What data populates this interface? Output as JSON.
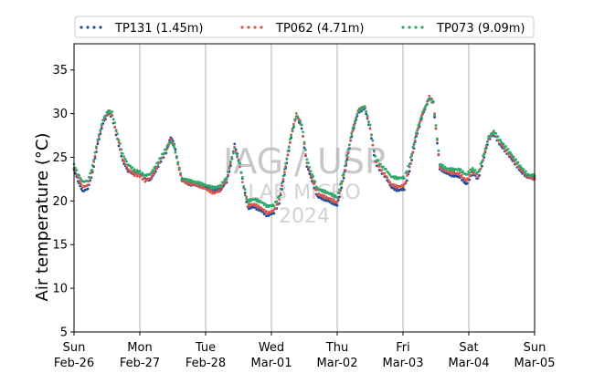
{
  "chart_data": {
    "type": "scatter",
    "ylabel": "Air temperature (°C)",
    "ylim": [
      5,
      38
    ],
    "yticks": [
      5,
      10,
      15,
      20,
      25,
      30,
      35
    ],
    "xlim": [
      "2024-02-26",
      "2024-03-05"
    ],
    "xticks": [
      {
        "day": "Sun",
        "date": "Feb-26"
      },
      {
        "day": "Mon",
        "date": "Feb-27"
      },
      {
        "day": "Tue",
        "date": "Feb-28"
      },
      {
        "day": "Wed",
        "date": "Mar-01"
      },
      {
        "day": "Thu",
        "date": "Mar-02"
      },
      {
        "day": "Fri",
        "date": "Mar-03"
      },
      {
        "day": "Sat",
        "date": "Mar-04"
      },
      {
        "day": "Sun",
        "date": "Mar-05"
      }
    ],
    "grid": "vertical",
    "legend_position": "top",
    "watermark": [
      "IAG / USP",
      "LAB MICRO",
      "2024"
    ],
    "series": [
      {
        "name": "TP131 (1.45m)",
        "color": "#1f4e99",
        "key": [
          [
            0,
            23.6
          ],
          [
            0.06,
            22.3
          ],
          [
            0.13,
            21.1
          ],
          [
            0.21,
            21.4
          ],
          [
            0.28,
            23.2
          ],
          [
            0.36,
            26.5
          ],
          [
            0.44,
            28.9
          ],
          [
            0.52,
            30.0
          ],
          [
            0.58,
            29.7
          ],
          [
            0.66,
            27.0
          ],
          [
            0.74,
            24.6
          ],
          [
            0.82,
            23.4
          ],
          [
            0.92,
            23.2
          ],
          [
            1.0,
            23.3
          ],
          [
            1.08,
            22.5
          ],
          [
            1.16,
            22.4
          ],
          [
            1.24,
            23.4
          ],
          [
            1.32,
            24.6
          ],
          [
            1.4,
            25.6
          ],
          [
            1.47,
            27.3
          ],
          [
            1.52,
            26.6
          ],
          [
            1.58,
            24.4
          ],
          [
            1.64,
            22.4
          ],
          [
            1.76,
            21.9
          ],
          [
            1.88,
            21.8
          ],
          [
            2.0,
            21.6
          ],
          [
            2.12,
            21.2
          ],
          [
            2.22,
            21.3
          ],
          [
            2.32,
            22.2
          ],
          [
            2.38,
            24.0
          ],
          [
            2.44,
            26.5
          ],
          [
            2.52,
            24.2
          ],
          [
            2.58,
            21.6
          ],
          [
            2.64,
            19.2
          ],
          [
            2.74,
            19.3
          ],
          [
            2.84,
            18.9
          ],
          [
            2.94,
            18.3
          ],
          [
            3.04,
            18.7
          ],
          [
            3.12,
            19.8
          ],
          [
            3.2,
            23.0
          ],
          [
            3.3,
            27.3
          ],
          [
            3.38,
            29.8
          ],
          [
            3.46,
            28.4
          ],
          [
            3.54,
            24.0
          ],
          [
            3.6,
            22.7
          ],
          [
            3.7,
            20.5
          ],
          [
            3.8,
            20.2
          ],
          [
            3.9,
            19.9
          ],
          [
            4.0,
            19.5
          ],
          [
            4.1,
            22.7
          ],
          [
            4.22,
            27.5
          ],
          [
            4.32,
            30.2
          ],
          [
            4.42,
            30.6
          ],
          [
            4.5,
            28.2
          ],
          [
            4.58,
            24.4
          ],
          [
            4.66,
            23.4
          ],
          [
            4.74,
            22.7
          ],
          [
            4.82,
            21.6
          ],
          [
            4.92,
            21.2
          ],
          [
            5.02,
            21.4
          ],
          [
            5.1,
            23.5
          ],
          [
            5.2,
            27.4
          ],
          [
            5.3,
            29.9
          ],
          [
            5.4,
            31.8
          ],
          [
            5.46,
            31.2
          ],
          [
            5.52,
            26.7
          ],
          [
            5.56,
            23.7
          ],
          [
            5.66,
            23.2
          ],
          [
            5.76,
            22.9
          ],
          [
            5.86,
            22.8
          ],
          [
            5.96,
            21.9
          ],
          [
            6.06,
            23.2
          ],
          [
            6.14,
            22.5
          ],
          [
            6.2,
            24.1
          ],
          [
            6.3,
            27.0
          ],
          [
            6.38,
            27.7
          ],
          [
            6.48,
            26.4
          ],
          [
            6.58,
            25.5
          ],
          [
            6.7,
            24.3
          ],
          [
            6.8,
            23.3
          ],
          [
            6.9,
            22.7
          ],
          [
            7.0,
            22.6
          ]
        ]
      },
      {
        "name": "TP062 (4.71m)",
        "color": "#d9534f",
        "key": [
          [
            0,
            23.8
          ],
          [
            0.06,
            22.6
          ],
          [
            0.13,
            21.6
          ],
          [
            0.21,
            21.8
          ],
          [
            0.28,
            23.6
          ],
          [
            0.36,
            26.8
          ],
          [
            0.44,
            29.2
          ],
          [
            0.52,
            30.2
          ],
          [
            0.58,
            29.9
          ],
          [
            0.66,
            27.2
          ],
          [
            0.74,
            24.8
          ],
          [
            0.82,
            23.6
          ],
          [
            0.92,
            23.0
          ],
          [
            1.0,
            22.9
          ],
          [
            1.08,
            22.3
          ],
          [
            1.16,
            22.6
          ],
          [
            1.24,
            23.6
          ],
          [
            1.32,
            24.8
          ],
          [
            1.4,
            25.8
          ],
          [
            1.47,
            27.0
          ],
          [
            1.52,
            26.3
          ],
          [
            1.58,
            24.2
          ],
          [
            1.64,
            22.3
          ],
          [
            1.76,
            22.0
          ],
          [
            1.88,
            21.8
          ],
          [
            2.0,
            21.4
          ],
          [
            2.12,
            20.9
          ],
          [
            2.22,
            21.2
          ],
          [
            2.32,
            22.4
          ],
          [
            2.38,
            24.3
          ],
          [
            2.44,
            26.2
          ],
          [
            2.52,
            24.0
          ],
          [
            2.58,
            21.4
          ],
          [
            2.64,
            19.5
          ],
          [
            2.74,
            19.6
          ],
          [
            2.84,
            19.2
          ],
          [
            2.94,
            18.6
          ],
          [
            3.04,
            18.9
          ],
          [
            3.12,
            20.1
          ],
          [
            3.2,
            23.3
          ],
          [
            3.3,
            27.5
          ],
          [
            3.38,
            29.9
          ],
          [
            3.46,
            28.6
          ],
          [
            3.54,
            24.3
          ],
          [
            3.6,
            22.9
          ],
          [
            3.7,
            20.8
          ],
          [
            3.8,
            20.5
          ],
          [
            3.9,
            20.2
          ],
          [
            4.0,
            19.8
          ],
          [
            4.1,
            22.9
          ],
          [
            4.22,
            27.7
          ],
          [
            4.32,
            30.4
          ],
          [
            4.42,
            30.8
          ],
          [
            4.5,
            28.4
          ],
          [
            4.58,
            24.6
          ],
          [
            4.66,
            23.6
          ],
          [
            4.74,
            22.9
          ],
          [
            4.82,
            21.9
          ],
          [
            4.92,
            21.6
          ],
          [
            5.02,
            21.8
          ],
          [
            5.1,
            23.8
          ],
          [
            5.2,
            27.6
          ],
          [
            5.3,
            30.1
          ],
          [
            5.4,
            31.9
          ],
          [
            5.46,
            31.4
          ],
          [
            5.52,
            26.9
          ],
          [
            5.56,
            23.9
          ],
          [
            5.66,
            23.4
          ],
          [
            5.76,
            23.2
          ],
          [
            5.86,
            23.1
          ],
          [
            5.96,
            22.3
          ],
          [
            6.06,
            23.4
          ],
          [
            6.14,
            22.8
          ],
          [
            6.2,
            24.3
          ],
          [
            6.3,
            27.2
          ],
          [
            6.38,
            27.9
          ],
          [
            6.48,
            26.6
          ],
          [
            6.58,
            25.7
          ],
          [
            6.7,
            24.5
          ],
          [
            6.8,
            23.5
          ],
          [
            6.9,
            22.8
          ],
          [
            7.0,
            22.5
          ]
        ]
      },
      {
        "name": "TP073 (9.09m)",
        "color": "#2ca86a",
        "key": [
          [
            0,
            24.2
          ],
          [
            0.06,
            23.1
          ],
          [
            0.13,
            22.2
          ],
          [
            0.21,
            22.3
          ],
          [
            0.28,
            24.0
          ],
          [
            0.36,
            27.0
          ],
          [
            0.44,
            29.3
          ],
          [
            0.52,
            30.3
          ],
          [
            0.58,
            30.1
          ],
          [
            0.66,
            27.6
          ],
          [
            0.74,
            25.4
          ],
          [
            0.82,
            24.2
          ],
          [
            0.92,
            23.5
          ],
          [
            1.0,
            23.3
          ],
          [
            1.08,
            22.9
          ],
          [
            1.16,
            23.1
          ],
          [
            1.24,
            24.0
          ],
          [
            1.32,
            25.0
          ],
          [
            1.4,
            26.0
          ],
          [
            1.47,
            26.8
          ],
          [
            1.52,
            26.2
          ],
          [
            1.58,
            24.4
          ],
          [
            1.64,
            22.6
          ],
          [
            1.76,
            22.3
          ],
          [
            1.88,
            22.1
          ],
          [
            2.0,
            21.8
          ],
          [
            2.12,
            21.5
          ],
          [
            2.22,
            21.7
          ],
          [
            2.32,
            22.7
          ],
          [
            2.38,
            24.5
          ],
          [
            2.44,
            26.0
          ],
          [
            2.52,
            24.2
          ],
          [
            2.58,
            21.8
          ],
          [
            2.64,
            20.0
          ],
          [
            2.74,
            20.2
          ],
          [
            2.84,
            19.9
          ],
          [
            2.94,
            19.4
          ],
          [
            3.04,
            19.5
          ],
          [
            3.12,
            20.6
          ],
          [
            3.2,
            23.6
          ],
          [
            3.3,
            27.6
          ],
          [
            3.38,
            29.8
          ],
          [
            3.46,
            28.8
          ],
          [
            3.54,
            24.8
          ],
          [
            3.6,
            23.4
          ],
          [
            3.7,
            21.4
          ],
          [
            3.8,
            21.1
          ],
          [
            3.9,
            20.8
          ],
          [
            4.0,
            20.4
          ],
          [
            4.1,
            23.3
          ],
          [
            4.22,
            27.8
          ],
          [
            4.32,
            30.3
          ],
          [
            4.42,
            30.8
          ],
          [
            4.5,
            28.6
          ],
          [
            4.58,
            25.0
          ],
          [
            4.66,
            24.1
          ],
          [
            4.74,
            23.6
          ],
          [
            4.82,
            22.8
          ],
          [
            4.92,
            22.6
          ],
          [
            5.02,
            22.7
          ],
          [
            5.1,
            24.3
          ],
          [
            5.2,
            27.8
          ],
          [
            5.3,
            30.1
          ],
          [
            5.4,
            31.7
          ],
          [
            5.46,
            31.3
          ],
          [
            5.52,
            27.2
          ],
          [
            5.56,
            24.2
          ],
          [
            5.66,
            23.7
          ],
          [
            5.76,
            23.6
          ],
          [
            5.86,
            23.6
          ],
          [
            5.96,
            23.0
          ],
          [
            6.06,
            23.7
          ],
          [
            6.14,
            23.2
          ],
          [
            6.2,
            24.6
          ],
          [
            6.3,
            27.3
          ],
          [
            6.38,
            28.0
          ],
          [
            6.48,
            26.9
          ],
          [
            6.58,
            26.0
          ],
          [
            6.7,
            24.8
          ],
          [
            6.8,
            23.8
          ],
          [
            6.9,
            23.0
          ],
          [
            7.0,
            22.9
          ]
        ]
      }
    ]
  }
}
